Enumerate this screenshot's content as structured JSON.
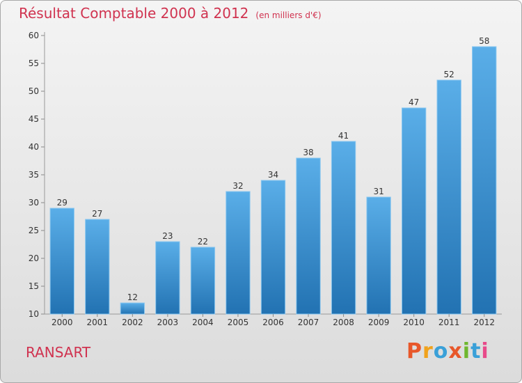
{
  "header": {
    "title": "Résultat Comptable 2000 à 2012",
    "subtitle": "(en milliers d'€)"
  },
  "footer": {
    "location": "RANSART",
    "logo_text": "Proxiti"
  },
  "colors": {
    "title": "#d0324f",
    "bar_top": "#5aaee8",
    "bar_bottom": "#2272b2",
    "logo_letters": [
      "#e8572a",
      "#f0a21c",
      "#3aa0d8",
      "#e8572a",
      "#6fb72e",
      "#3aa0d8",
      "#e84a8a"
    ]
  },
  "chart_data": {
    "type": "bar",
    "categories": [
      "2000",
      "2001",
      "2002",
      "2003",
      "2004",
      "2005",
      "2006",
      "2007",
      "2008",
      "2009",
      "2010",
      "2011",
      "2012"
    ],
    "values": [
      29,
      27,
      12,
      23,
      22,
      32,
      34,
      38,
      41,
      31,
      47,
      52,
      58
    ],
    "title": "Résultat Comptable 2000 à 2012",
    "subtitle": "(en milliers d'€)",
    "xlabel": "",
    "ylabel": "",
    "ylim": [
      10,
      60
    ],
    "yticks": [
      10,
      15,
      20,
      25,
      30,
      35,
      40,
      45,
      50,
      55,
      60
    ],
    "grid": false,
    "data_labels": true
  }
}
